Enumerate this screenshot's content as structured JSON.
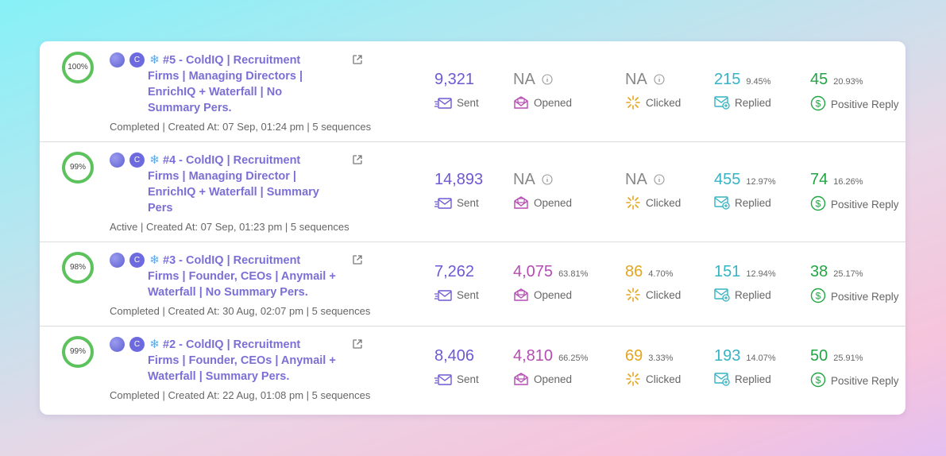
{
  "labels": {
    "sent": "Sent",
    "opened": "Opened",
    "clicked": "Clicked",
    "replied": "Replied",
    "positive": "Positive Reply",
    "avatar_c": "C"
  },
  "colors": {
    "progress": "#5cc35c",
    "title": "#7b6fd6",
    "sent": "#6f58d4",
    "opened": "#b54bb3",
    "clicked": "#e4a51e",
    "replied": "#36b3c4",
    "positive": "#22a544"
  },
  "campaigns": [
    {
      "progress_label": "100%",
      "progress": 1.0,
      "title_lines": [
        "#5 - ColdIQ | Recruitment",
        "Firms | Managing Directors |",
        "EnrichIQ + Waterfall | No",
        "Summary Pers."
      ],
      "meta": "Completed | Created At: 07 Sep, 01:24 pm | 5 sequences",
      "sent": "9,321",
      "opened": "NA",
      "opened_pct": "",
      "clicked": "NA",
      "clicked_pct": "",
      "replied": "215",
      "replied_pct": "9.45%",
      "positive": "45",
      "positive_pct": "20.93%"
    },
    {
      "progress_label": "99%",
      "progress": 0.99,
      "title_lines": [
        "#4 - ColdIQ | Recruitment",
        "Firms | Managing Director |",
        "EnrichIQ + Waterfall | Summary",
        "Pers"
      ],
      "meta": "Active | Created At: 07 Sep, 01:23 pm | 5 sequences",
      "sent": "14,893",
      "opened": "NA",
      "opened_pct": "",
      "clicked": "NA",
      "clicked_pct": "",
      "replied": "455",
      "replied_pct": "12.97%",
      "positive": "74",
      "positive_pct": "16.26%"
    },
    {
      "progress_label": "98%",
      "progress": 0.98,
      "title_lines": [
        "#3 - ColdIQ | Recruitment",
        "Firms | Founder, CEOs | Anymail +",
        "Waterfall | No Summary Pers."
      ],
      "meta": "Completed | Created At: 30 Aug, 02:07 pm | 5 sequences",
      "sent": "7,262",
      "opened": "4,075",
      "opened_pct": "63.81%",
      "clicked": "86",
      "clicked_pct": "4.70%",
      "replied": "151",
      "replied_pct": "12.94%",
      "positive": "38",
      "positive_pct": "25.17%"
    },
    {
      "progress_label": "99%",
      "progress": 0.99,
      "title_lines": [
        "#2 - ColdIQ | Recruitment",
        "Firms | Founder, CEOs | Anymail +",
        "Waterfall | Summary Pers."
      ],
      "meta": "Completed | Created At: 22 Aug, 01:08 pm | 5 sequences",
      "sent": "8,406",
      "opened": "4,810",
      "opened_pct": "66.25%",
      "clicked": "69",
      "clicked_pct": "3.33%",
      "replied": "193",
      "replied_pct": "14.07%",
      "positive": "50",
      "positive_pct": "25.91%"
    }
  ]
}
